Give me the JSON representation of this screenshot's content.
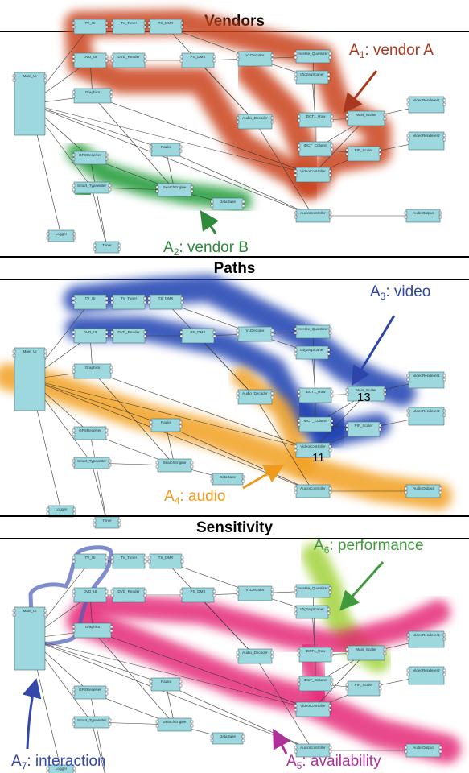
{
  "panels": [
    {
      "title": "Vendors",
      "callouts": [
        {
          "pre": "A",
          "sub": "1",
          "post": ": vendor A",
          "color": "#a9391e"
        },
        {
          "pre": "A",
          "sub": "2",
          "post": ": vendor B",
          "color": "#2e8b3a"
        }
      ]
    },
    {
      "title": "Paths",
      "callouts": [
        {
          "pre": "A",
          "sub": "3",
          "post": ": video",
          "color": "#2d44a8"
        },
        {
          "pre": "A",
          "sub": "4",
          "post": ": audio",
          "color": "#ef9a1c"
        }
      ],
      "numbers": [
        "13",
        "11"
      ]
    },
    {
      "title": "Sensitivity",
      "callouts": [
        {
          "pre": "A",
          "sub": "6",
          "post": ": performance",
          "color": "#3f9a3c"
        },
        {
          "pre": "A",
          "sub": "7",
          "post": ": interaction",
          "color": "#3348a8"
        },
        {
          "pre": "A",
          "sub": "5",
          "post": ": availability",
          "color": "#b0309a"
        }
      ]
    }
  ],
  "nodes": {
    "main_ui": "Main_UI",
    "tv_ui": "TV_UI",
    "tv_tuner": "TV_Tuner",
    "ts_dmx": "TS_DMX",
    "vldecoder": "VLDecoder",
    "inverse_quantizer": "Inverse_Quantizer",
    "dvd_ui": "DVD_UI",
    "dvd_reader": "DVD_Reader",
    "ps_dmx": "PS_DMX",
    "izigzag": "IZigzagScaner",
    "graphics": "Graphics",
    "audio_decoder": "Audio_Decoder",
    "idct1_row": "IDCT1_Row",
    "main_scaler": "Main_Scaler",
    "videorenderer1": "VideoRenderer1",
    "idct_column": "IDCT_Column",
    "pip_scaler": "PIP_Scaler",
    "videorenderer2": "VideoRenderer2",
    "radio": "Radio",
    "gpsreceiver": "GPSReceiver",
    "videocontroller": "VideoController",
    "smart_typewriter": "Smart_Typewriter",
    "searchengine": "SearchEngine",
    "database": "DataBase",
    "audiocontroller": "AudioController",
    "audiooutput": "AudioOutput",
    "logger": "Logger",
    "timer": "Timer"
  },
  "colors": {
    "node_fill": "#9ed8df",
    "node_stroke": "#4a6f78",
    "vendor_a": "#c9431b",
    "vendor_b": "#1f9a35",
    "video": "#1f3fb0",
    "audio": "#f2a023",
    "performance": "#a2d33a",
    "availability": "#e31e6f",
    "interaction": "#4a5cb8"
  }
}
